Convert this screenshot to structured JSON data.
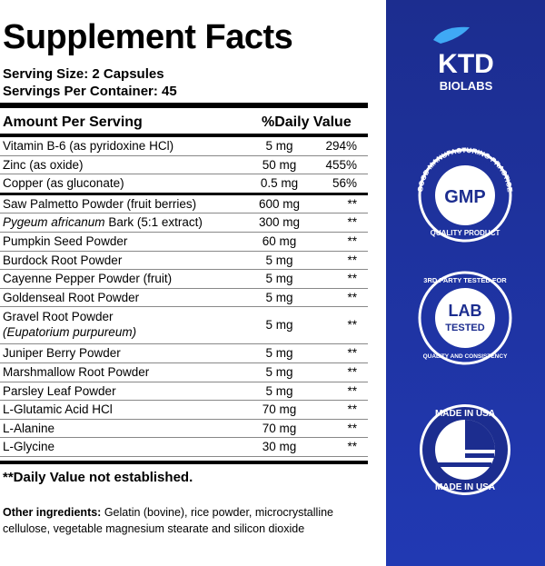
{
  "facts": {
    "title": "Supplement Facts",
    "serving_size": "Serving Size: 2 Capsules",
    "servings_per_container": "Servings Per Container: 45",
    "header": {
      "amount_per_serving": "Amount Per Serving",
      "daily_value": "%Daily Value"
    },
    "rows": [
      {
        "name": [
          {
            "text": "Vitamin B-6 (as pyridoxine HCl)"
          }
        ],
        "amount": "5 mg",
        "dv": "294%"
      },
      {
        "name": [
          {
            "text": "Zinc (as oxide)"
          }
        ],
        "amount": "50 mg",
        "dv": "455%"
      },
      {
        "name": [
          {
            "text": "Copper  (as gluconate)"
          }
        ],
        "amount": "0.5 mg",
        "dv": "56%",
        "thick_rule": true
      },
      {
        "name": [
          {
            "text": "Saw Palmetto Powder (fruit berries)"
          }
        ],
        "amount": "600 mg",
        "dv": "**"
      },
      {
        "name": [
          {
            "text": "Pygeum africanum",
            "italic": true
          },
          {
            "text": " Bark (5:1 extract)"
          }
        ],
        "amount": "300 mg",
        "dv": "**"
      },
      {
        "name": [
          {
            "text": "Pumpkin Seed Powder"
          }
        ],
        "amount": "60 mg",
        "dv": "**"
      },
      {
        "name": [
          {
            "text": "Burdock Root Powder"
          }
        ],
        "amount": "5 mg",
        "dv": "**"
      },
      {
        "name": [
          {
            "text": "Cayenne Pepper Powder (fruit)"
          }
        ],
        "amount": "5 mg",
        "dv": "**"
      },
      {
        "name": [
          {
            "text": "Goldenseal Root Powder"
          }
        ],
        "amount": "5 mg",
        "dv": "**"
      },
      {
        "name": [
          {
            "text": "Gravel Root Powder"
          },
          {
            "text": "(Eupatorium purpureum)",
            "italic": true,
            "new_line": true
          }
        ],
        "amount": "5 mg",
        "dv": "**"
      },
      {
        "name": [
          {
            "text": "Juniper Berry  Powder"
          }
        ],
        "amount": "5 mg",
        "dv": "**"
      },
      {
        "name": [
          {
            "text": "Marshmallow Root Powder"
          }
        ],
        "amount": "5 mg",
        "dv": "**"
      },
      {
        "name": [
          {
            "text": "Parsley  Leaf Powder"
          }
        ],
        "amount": "5 mg",
        "dv": "**"
      },
      {
        "name": [
          {
            "text": "L-Glutamic Acid HCl"
          }
        ],
        "amount": "70 mg",
        "dv": "**"
      },
      {
        "name": [
          {
            "text": "L-Alanine"
          }
        ],
        "amount": "70 mg",
        "dv": "**"
      },
      {
        "name": [
          {
            "text": "L-Glycine"
          }
        ],
        "amount": "30 mg",
        "dv": "**"
      }
    ],
    "footnote": "**Daily Value not established.",
    "other_ingredients_label": "Other ingredients:",
    "other_ingredients": " Gelatin (bovine), rice powder, microcrystalline cellulose, vegetable magnesium stearate and silicon dioxide"
  },
  "brand": {
    "name": "KTD",
    "sub": "BIOLABS"
  },
  "badges": {
    "gmp": {
      "top": "GOOD MANUFACTURING PRACTICE",
      "center": "GMP",
      "bottom": "QUALITY PRODUCT"
    },
    "lab": {
      "top": "3RD PARTY TESTED FOR",
      "center1": "LAB",
      "center2": "TESTED",
      "bottom": "QUALITY AND CONSISTENCY"
    },
    "usa": {
      "top": "MADE IN USA",
      "bottom": "MADE IN USA"
    }
  }
}
